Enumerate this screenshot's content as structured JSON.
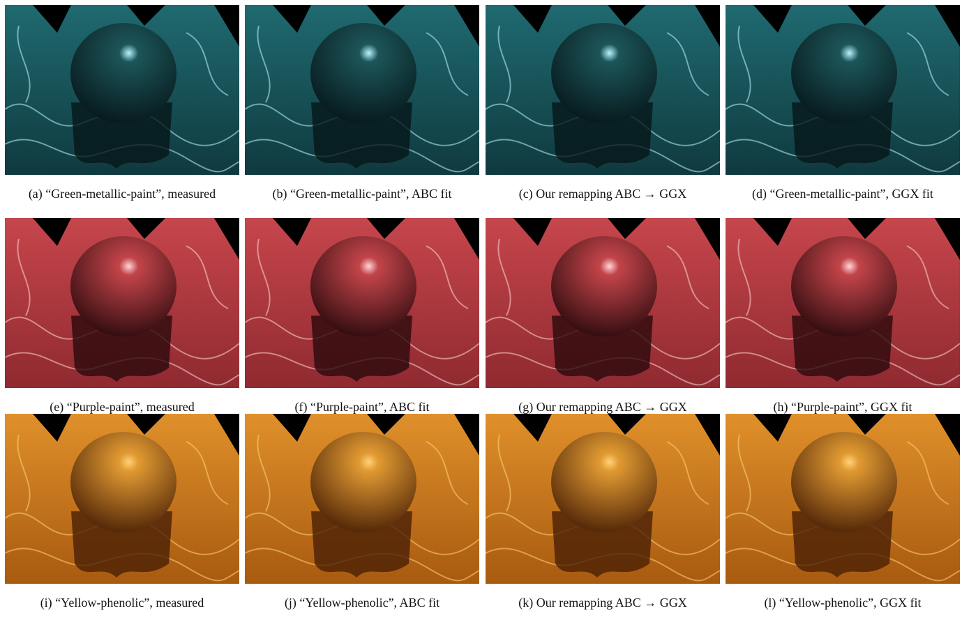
{
  "figure": {
    "rows": [
      {
        "material": "green",
        "colors": {
          "base": "#0f3a3f",
          "mid": "#1f6a70",
          "highlight": "#b9f4ff",
          "shadow": "#061619",
          "sphere": "#1c5559"
        },
        "panels": [
          {
            "caption": "(a) “Green-metallic-paint”, measured"
          },
          {
            "caption": "(b) “Green-metallic-paint”, ABC fit"
          },
          {
            "caption": "(c) Our remapping ABC → GGX"
          },
          {
            "caption": "(d) “Green-metallic-paint”, GGX fit"
          }
        ]
      },
      {
        "material": "purple",
        "colors": {
          "base": "#8f2a30",
          "mid": "#c6464c",
          "highlight": "#ffd6d6",
          "shadow": "#2a0a0c",
          "sphere": "#c2444a"
        },
        "panels": [
          {
            "caption": "(e) “Purple-paint”, measured"
          },
          {
            "caption": "(f) “Purple-paint”, ABC fit"
          },
          {
            "caption": "(g) Our remapping ABC → GGX"
          },
          {
            "caption": "(h) “Purple-paint”, GGX fit"
          }
        ]
      },
      {
        "material": "yellow",
        "colors": {
          "base": "#a85a10",
          "mid": "#e0902a",
          "highlight": "#ffd27a",
          "shadow": "#4a2006",
          "sphere": "#e19a32"
        },
        "panels": [
          {
            "caption": "(i) “Yellow-phenolic”, measured"
          },
          {
            "caption": "(j) “Yellow-phenolic”, ABC fit"
          },
          {
            "caption": "(k) Our remapping ABC → GGX"
          },
          {
            "caption": "(l) “Yellow-phenolic”, GGX fit"
          }
        ]
      }
    ]
  }
}
